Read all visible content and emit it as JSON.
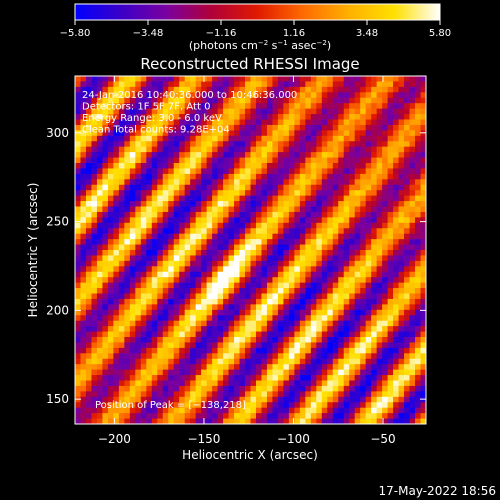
{
  "chart_data": {
    "type": "heatmap",
    "title": "Reconstructed RHESSI Image",
    "xlabel": "Heliocentric X (arcsec)",
    "ylabel": "Heliocentric Y (arcsec)",
    "xlim": [
      -222,
      -26
    ],
    "ylim": [
      136,
      332
    ],
    "x_ticks": [
      -200,
      -150,
      -100,
      -50
    ],
    "x_tick_labels": [
      "−200",
      "−150",
      "−100",
      "−50"
    ],
    "y_ticks": [
      150,
      200,
      250,
      300
    ],
    "y_tick_labels": [
      "150",
      "200",
      "250",
      "300"
    ],
    "colorbar": {
      "min": -5.8,
      "max": 5.8,
      "ticks": [
        -5.8,
        -3.48,
        -1.16,
        1.16,
        3.48,
        5.8
      ],
      "tick_labels": [
        "−5.80",
        "−3.48",
        "−1.16",
        "1.16",
        "3.48",
        "5.80"
      ],
      "unit_label": "(photons cm",
      "unit_exp1": "−2",
      "unit_mid": " s",
      "unit_exp2": "−1",
      "unit_mid2": " asec",
      "unit_exp3": "−2",
      "unit_end": ")",
      "colors": [
        "#0000ff",
        "#3a00c8",
        "#7a00a0",
        "#b00038",
        "#e01a00",
        "#ff6a00",
        "#ffb000",
        "#ffe000",
        "#ffffff"
      ]
    },
    "annotations": [
      "24-Jan-2016 10:40:36.000 to 10:46:36.000",
      "Detectors: 1F 5F 7F, Att 0",
      "Energy Range: 3.0 - 6.0 keV",
      "Clean      Total counts: 9.28E+04"
    ],
    "peak_label": "Position of Peak = [−138,218]",
    "peak": [
      -138,
      218
    ],
    "grid": false
  },
  "timestamp": "17-May-2022 18:56"
}
